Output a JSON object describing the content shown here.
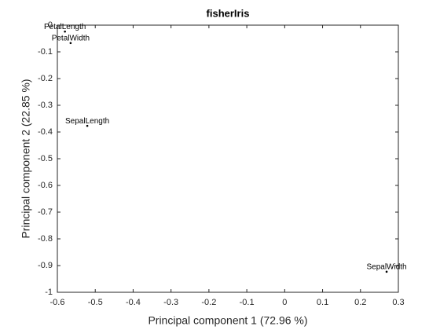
{
  "chart_data": {
    "type": "scatter",
    "title": "fisherIris",
    "xlabel": "Principal component 1 (72.96 %)",
    "ylabel": "Principal component 2 (22.85 %)",
    "series": [
      {
        "name": null,
        "color": "#000000",
        "x": [
          -0.521,
          0.269,
          -0.58,
          -0.565
        ],
        "values": [
          -0.377,
          -0.923,
          -0.024,
          -0.067
        ],
        "labels": [
          "SepalLength",
          "SepalWidth",
          "PetalLength",
          "PetalWidth"
        ]
      }
    ],
    "xlim": [
      -0.6,
      0.3
    ],
    "ylim": [
      -1,
      0
    ],
    "xticks": [
      -0.6,
      -0.5,
      -0.4,
      -0.3,
      -0.2,
      -0.1,
      0,
      0.1,
      0.2,
      0.3
    ],
    "yticks": [
      0,
      -0.1,
      -0.2,
      -0.3,
      -0.4,
      -0.5,
      -0.6,
      -0.7,
      -0.8,
      -0.9,
      -1
    ],
    "grid": false
  }
}
